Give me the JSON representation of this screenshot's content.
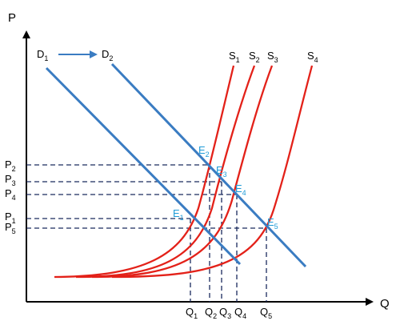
{
  "axes": {
    "y_label": "P",
    "x_label": "Q"
  },
  "demand": [
    {
      "label": "D",
      "sub": "1"
    },
    {
      "label": "D",
      "sub": "2"
    }
  ],
  "supply": [
    {
      "label": "S",
      "sub": "1"
    },
    {
      "label": "S",
      "sub": "2"
    },
    {
      "label": "S",
      "sub": "3"
    },
    {
      "label": "S",
      "sub": "4"
    }
  ],
  "prices": [
    {
      "label": "P",
      "sub": "2"
    },
    {
      "label": "P",
      "sub": "3"
    },
    {
      "label": "P",
      "sub": "4"
    },
    {
      "label": "P",
      "sub": "1"
    },
    {
      "label": "P",
      "sub": "5"
    }
  ],
  "quantities": [
    {
      "label": "Q",
      "sub": "1"
    },
    {
      "label": "Q",
      "sub": "2"
    },
    {
      "label": "Q",
      "sub": "3"
    },
    {
      "label": "Q",
      "sub": "4"
    },
    {
      "label": "Q",
      "sub": "5"
    }
  ],
  "equilibria": [
    {
      "label": "E",
      "sub": "2"
    },
    {
      "label": "E",
      "sub": "3"
    },
    {
      "label": "E",
      "sub": "4"
    },
    {
      "label": "E",
      "sub": "1"
    },
    {
      "label": "E",
      "sub": "5"
    }
  ],
  "colors": {
    "demand": "#3a7cc2",
    "supply": "#e32119",
    "guides": "#1a2a5e",
    "equilibrium_label": "#1f9bd7",
    "axis": "#000000"
  }
}
